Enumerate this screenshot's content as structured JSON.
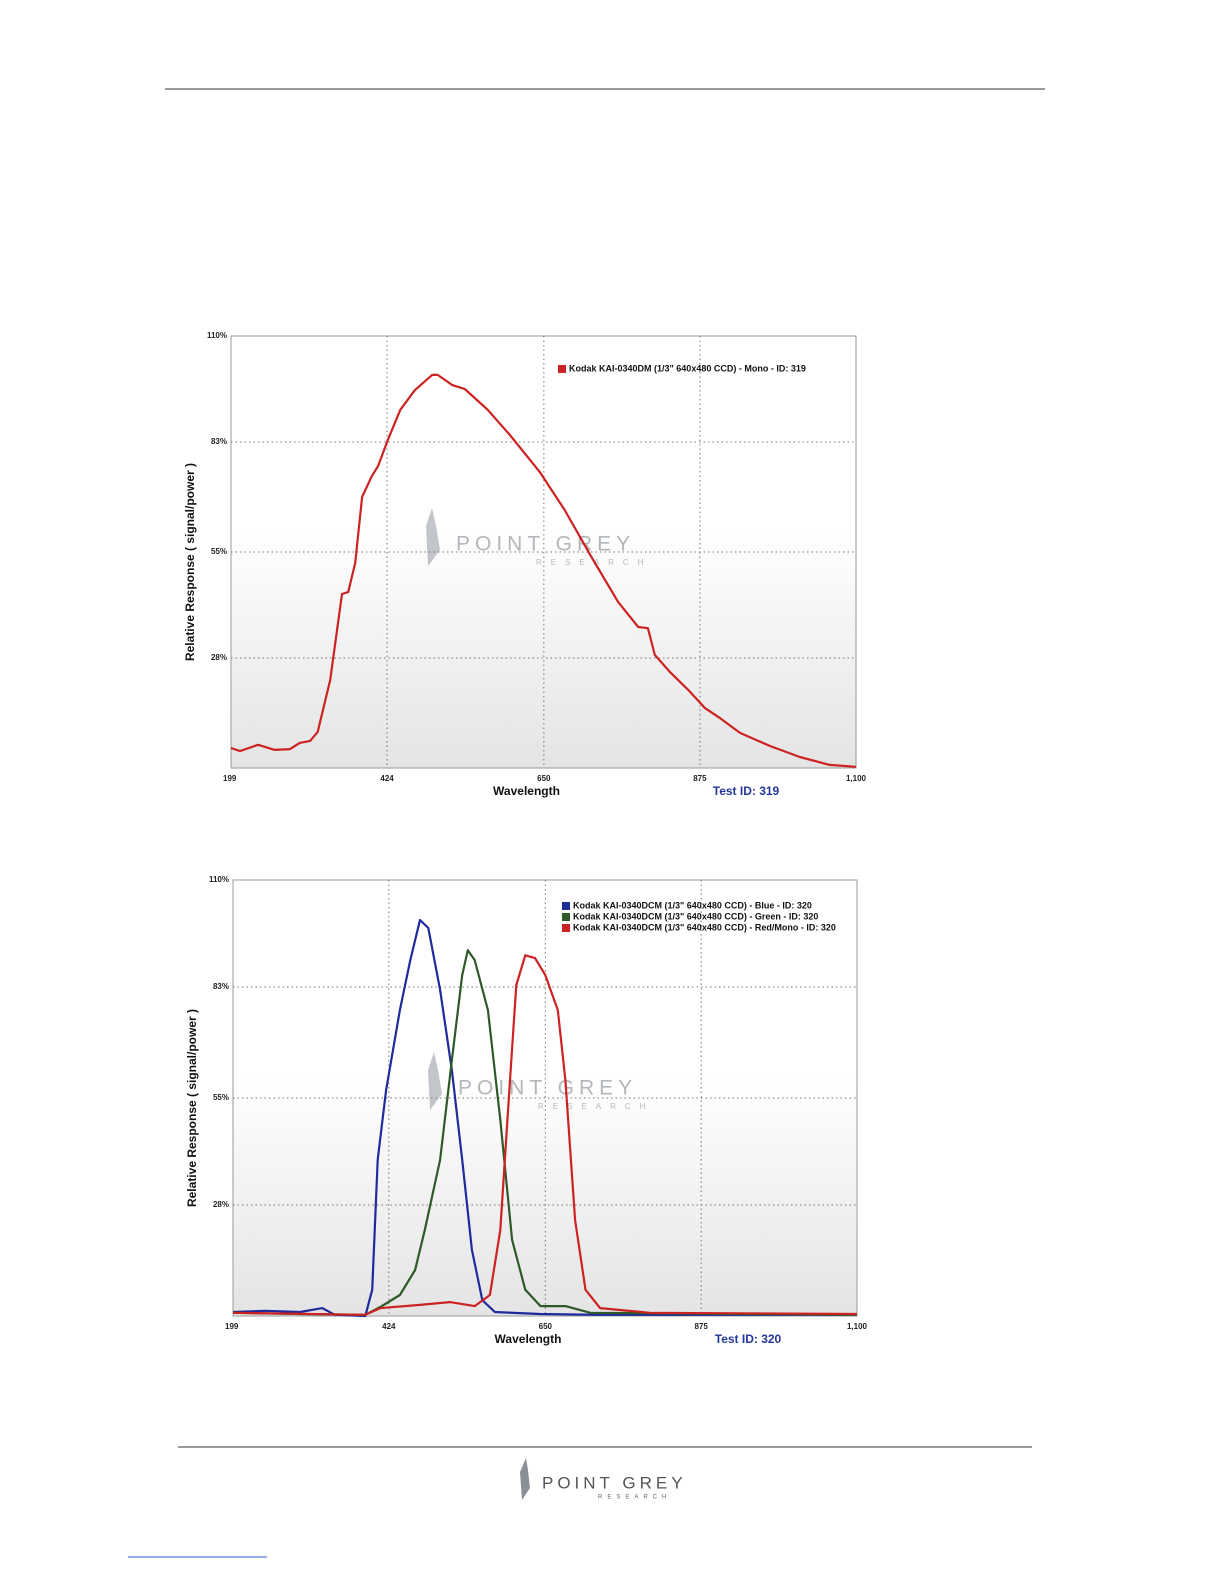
{
  "chart_data": [
    {
      "type": "line",
      "xlabel": "Wavelength",
      "ylabel": "Relative Response ( signal/power )",
      "annotation": "Test ID: 319",
      "watermark": {
        "title": "POINT GREY",
        "subtitle": "RESEARCH"
      },
      "xlim": [
        199,
        1100
      ],
      "xticks": [
        199,
        424,
        650,
        875,
        {
          "value": 1100,
          "label": "1,100"
        }
      ],
      "ylim": [
        0,
        110
      ],
      "yticks": [
        {
          "value": 28,
          "label": "28%"
        },
        {
          "value": 55,
          "label": "55%"
        },
        {
          "value": 83,
          "label": "83%"
        },
        {
          "value": 110,
          "label": "110%"
        }
      ],
      "grid": true,
      "series": [
        {
          "name": "Kodak KAI-0340DM (1/3\" 640x480 CCD) - Mono - ID: 319",
          "color": "#cc2222",
          "x": [
            199,
            212,
            238,
            262,
            284,
            298,
            313,
            324,
            342,
            359,
            368,
            378,
            388,
            402,
            411,
            425,
            443,
            464,
            489,
            497,
            518,
            536,
            569,
            601,
            644,
            680,
            717,
            757,
            786,
            800,
            810,
            832,
            858,
            882,
            904,
            933,
            976,
            1019,
            1062,
            1100
          ],
          "values": [
            5.1,
            4.3,
            5.9,
            4.6,
            4.8,
            6.4,
            6.9,
            9.2,
            22.4,
            44.3,
            44.8,
            52.2,
            69,
            74.3,
            76.9,
            83.5,
            91.2,
            96.2,
            100.1,
            100.1,
            97.5,
            96.5,
            91.2,
            84.8,
            75.4,
            65.7,
            54.2,
            42.3,
            35.9,
            35.6,
            28.8,
            24.4,
            19.9,
            15.3,
            12.7,
            8.9,
            5.6,
            2.8,
            0.8,
            0.3
          ]
        }
      ]
    },
    {
      "type": "line",
      "xlabel": "Wavelength",
      "ylabel": "Relative Response ( signal/power )",
      "annotation": "Test ID: 320",
      "watermark": {
        "title": "POINT GREY",
        "subtitle": "RESEARCH"
      },
      "xlim": [
        199,
        1100
      ],
      "xticks": [
        199,
        424,
        650,
        875,
        {
          "value": 1100,
          "label": "1,100"
        }
      ],
      "ylim": [
        0,
        110
      ],
      "yticks": [
        {
          "value": 28,
          "label": "28%"
        },
        {
          "value": 55,
          "label": "55%"
        },
        {
          "value": 83,
          "label": "83%"
        },
        {
          "value": 110,
          "label": "110%"
        }
      ],
      "grid": true,
      "series": [
        {
          "name": "Kodak KAI-0340DCM (1/3\" 640x480 CCD) - Blue  - ID: 320",
          "color": "#1f2a9c",
          "x": [
            199,
            245,
            296,
            328,
            346,
            390,
            400,
            408,
            420,
            440,
            455,
            469,
            481,
            498,
            515,
            530,
            544,
            559,
            577,
            642,
            729,
            1100
          ],
          "values": [
            1,
            1.3,
            1,
            2,
            0.3,
            0,
            6.6,
            39.4,
            57,
            77.2,
            89.8,
            99.9,
            97.9,
            82.3,
            62,
            39.4,
            16.7,
            4,
            1,
            0.5,
            0.3,
            0.3
          ]
        },
        {
          "name": "Kodak KAI-0340DCM (1/3\" 640x480 CCD) - Green  - ID: 320",
          "color": "#2d5a27",
          "x": [
            199,
            296,
            390,
            412,
            440,
            462,
            476,
            498,
            515,
            530,
            538,
            548,
            567,
            585,
            602,
            621,
            643,
            679,
            715,
            1100
          ],
          "values": [
            0.8,
            0.5,
            0.3,
            2.3,
            5.3,
            11.6,
            21.7,
            39.4,
            64.6,
            86,
            92.3,
            89.8,
            77.2,
            49.5,
            19.2,
            6.6,
            2.5,
            2.5,
            0.8,
            0.3
          ]
        },
        {
          "name": "Kodak KAI-0340DCM (1/3\" 640x480 CCD) - Red/Mono - ID: 320",
          "color": "#cc2222",
          "x": [
            199,
            390,
            412,
            469,
            512,
            548,
            570,
            585,
            599,
            608,
            621,
            635,
            650,
            668,
            679,
            693,
            708,
            729,
            801,
            1100
          ],
          "values": [
            0.8,
            0.3,
            2,
            2.8,
            3.5,
            2.5,
            5.3,
            21.7,
            59.5,
            83.5,
            91,
            90.3,
            86,
            77.2,
            59.5,
            24.2,
            6.6,
            2,
            0.8,
            0.5
          ]
        }
      ]
    }
  ],
  "footer": {
    "title": "POINT GREY",
    "subtitle": "RESEARCH"
  }
}
